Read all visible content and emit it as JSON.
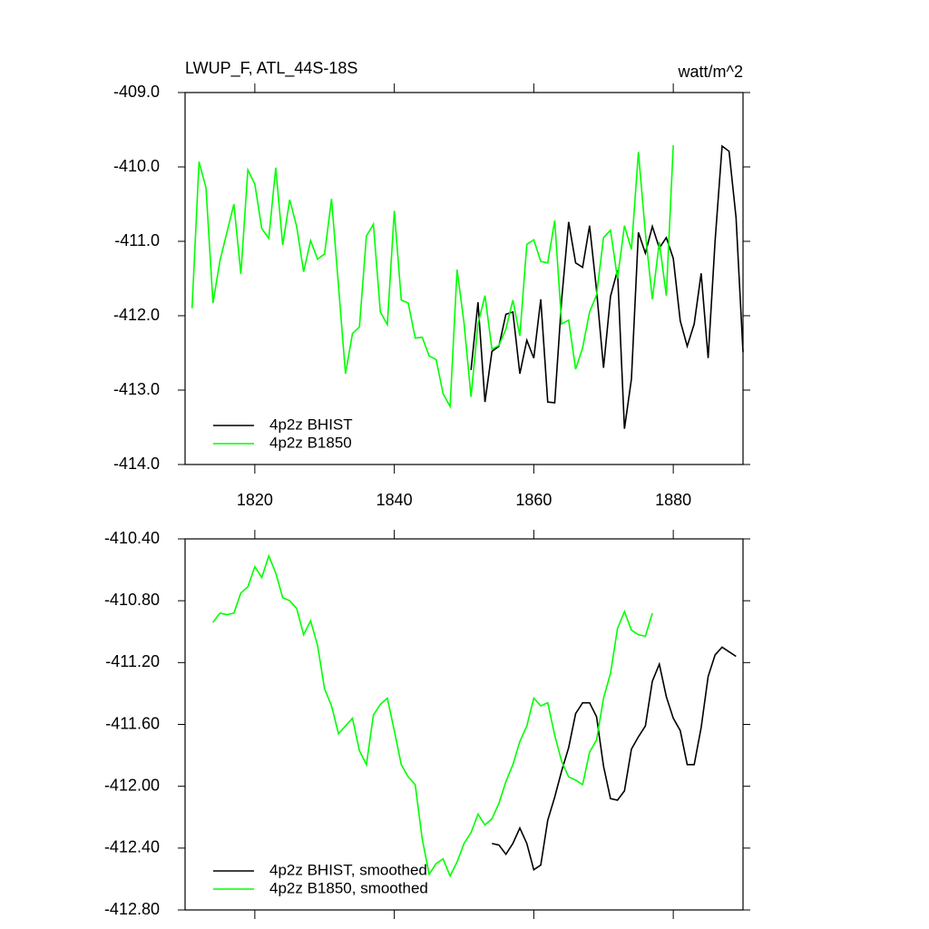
{
  "chart_data": [
    {
      "type": "line",
      "title": "LWUP_F, ATL_44S-18S",
      "subtitle": "watt/m^2",
      "x": [
        1811,
        1812,
        1813,
        1814,
        1815,
        1816,
        1817,
        1818,
        1819,
        1820,
        1821,
        1822,
        1823,
        1824,
        1825,
        1826,
        1827,
        1828,
        1829,
        1830,
        1831,
        1832,
        1833,
        1834,
        1835,
        1836,
        1837,
        1838,
        1839,
        1840,
        1841,
        1842,
        1843,
        1844,
        1845,
        1846,
        1847,
        1848,
        1849,
        1850,
        1851,
        1852,
        1853,
        1854,
        1855,
        1856,
        1857,
        1858,
        1859,
        1860,
        1861,
        1862,
        1863,
        1864,
        1865,
        1866,
        1867,
        1868,
        1869,
        1870,
        1871,
        1872,
        1873,
        1874,
        1875,
        1876,
        1877,
        1878,
        1879,
        1880,
        1881,
        1882,
        1883,
        1884,
        1885,
        1886,
        1887,
        1888,
        1889,
        1890
      ],
      "series": [
        {
          "name": "4p2z BHIST",
          "color": "#000000",
          "values": [
            null,
            null,
            null,
            null,
            null,
            null,
            null,
            null,
            null,
            null,
            null,
            null,
            null,
            null,
            null,
            null,
            null,
            null,
            null,
            null,
            null,
            null,
            null,
            null,
            null,
            null,
            null,
            null,
            null,
            null,
            null,
            null,
            null,
            null,
            null,
            null,
            null,
            null,
            null,
            null,
            -412.73,
            -411.82,
            -413.16,
            -412.48,
            -412.41,
            -411.98,
            -411.95,
            -412.78,
            -412.33,
            -412.57,
            -411.78,
            -413.16,
            -413.17,
            -411.78,
            -410.74,
            -411.29,
            -411.35,
            -410.79,
            -411.66,
            -412.7,
            -411.74,
            -411.39,
            -413.52,
            -412.85,
            -410.88,
            -411.16,
            -410.8,
            -411.09,
            -410.95,
            -411.23,
            -412.07,
            -412.41,
            -412.11,
            -411.43,
            -412.57,
            -410.99,
            -409.72,
            -409.79,
            -410.68,
            -412.49
          ]
        },
        {
          "name": "4p2z B1850",
          "color": "#00ff00",
          "values": [
            -411.9,
            -409.93,
            -410.28,
            -411.83,
            -411.26,
            -410.88,
            -410.5,
            -411.44,
            -410.04,
            -410.23,
            -410.83,
            -410.96,
            -410.01,
            -411.05,
            -410.44,
            -410.8,
            -411.41,
            -410.99,
            -411.24,
            -411.17,
            -410.43,
            -411.6,
            -412.78,
            -412.24,
            -412.15,
            -410.93,
            -410.77,
            -411.95,
            -412.12,
            -410.59,
            -411.79,
            -411.83,
            -412.3,
            -412.29,
            -412.54,
            -412.59,
            -413.05,
            -413.22,
            -411.38,
            -412.1,
            -413.09,
            -412.11,
            -411.73,
            -412.45,
            -412.4,
            -412.18,
            -411.79,
            -412.27,
            -411.04,
            -410.98,
            -411.27,
            -411.29,
            -410.72,
            -412.11,
            -412.06,
            -412.72,
            -412.43,
            -411.95,
            -411.72,
            -410.95,
            -410.85,
            -411.5,
            -410.79,
            -411.11,
            -409.8,
            -410.89,
            -411.78,
            -411.01,
            -411.73,
            -409.71,
            null,
            null,
            null,
            null,
            null,
            null,
            null,
            null,
            null,
            null
          ]
        }
      ],
      "xlim": [
        1810,
        1890
      ],
      "xticks": [
        1820,
        1840,
        1860,
        1880
      ],
      "xtick_labels": true,
      "ylim": [
        -414,
        -409
      ],
      "yticks": [
        {
          "value": -414,
          "label": "-414.0"
        },
        {
          "value": -413,
          "label": "-413.0"
        },
        {
          "value": -412,
          "label": "-412.0"
        },
        {
          "value": -411,
          "label": "-411.0"
        },
        {
          "value": -410,
          "label": "-410.0"
        },
        {
          "value": -409,
          "label": "-409.0"
        }
      ],
      "grid": false,
      "legend": "lower left"
    },
    {
      "type": "line",
      "x": [
        1814,
        1815,
        1816,
        1817,
        1818,
        1819,
        1820,
        1821,
        1822,
        1823,
        1824,
        1825,
        1826,
        1827,
        1828,
        1829,
        1830,
        1831,
        1832,
        1833,
        1834,
        1835,
        1836,
        1837,
        1838,
        1839,
        1840,
        1841,
        1842,
        1843,
        1844,
        1845,
        1846,
        1847,
        1848,
        1849,
        1850,
        1851,
        1852,
        1853,
        1854,
        1855,
        1856,
        1857,
        1858,
        1859,
        1860,
        1861,
        1862,
        1863,
        1864,
        1865,
        1866,
        1867,
        1868,
        1869,
        1870,
        1871,
        1872,
        1873,
        1874,
        1875,
        1876,
        1877,
        1878,
        1879,
        1880,
        1881,
        1882,
        1883,
        1884,
        1885,
        1886,
        1887,
        1888,
        1889
      ],
      "series": [
        {
          "name": "4p2z BHIST, smoothed",
          "color": "#000000",
          "values": [
            null,
            null,
            null,
            null,
            null,
            null,
            null,
            null,
            null,
            null,
            null,
            null,
            null,
            null,
            null,
            null,
            null,
            null,
            null,
            null,
            null,
            null,
            null,
            null,
            null,
            null,
            null,
            null,
            null,
            null,
            null,
            null,
            null,
            null,
            null,
            null,
            null,
            null,
            null,
            null,
            -412.37,
            -412.38,
            -412.44,
            -412.37,
            -412.27,
            -412.37,
            -412.54,
            -412.51,
            -412.22,
            -412.07,
            -411.9,
            -411.75,
            -411.53,
            -411.46,
            -411.46,
            -411.55,
            -411.87,
            -412.08,
            -412.09,
            -412.03,
            -411.76,
            -411.68,
            -411.61,
            -411.32,
            -411.21,
            -411.42,
            -411.56,
            -411.64,
            -411.86,
            -411.86,
            -411.62,
            -411.29,
            -411.15,
            -411.1,
            -411.13,
            -411.16
          ]
        },
        {
          "name": "4p2z B1850, smoothed",
          "color": "#00ff00",
          "values": [
            -410.94,
            -410.88,
            -410.89,
            -410.88,
            -410.75,
            -410.71,
            -410.58,
            -410.65,
            -410.51,
            -410.62,
            -410.78,
            -410.8,
            -410.85,
            -411.02,
            -410.93,
            -411.09,
            -411.37,
            -411.48,
            -411.66,
            -411.61,
            -411.56,
            -411.77,
            -411.86,
            -411.54,
            -411.47,
            -411.43,
            -411.64,
            -411.86,
            -411.94,
            -411.99,
            -412.34,
            -412.57,
            -412.5,
            -412.47,
            -412.58,
            -412.49,
            -412.37,
            -412.3,
            -412.18,
            -412.25,
            -412.21,
            -412.11,
            -411.97,
            -411.86,
            -411.71,
            -411.61,
            -411.43,
            -411.48,
            -411.46,
            -411.67,
            -411.84,
            -411.94,
            -411.96,
            -411.99,
            -411.78,
            -411.7,
            -411.43,
            -411.27,
            -410.98,
            -410.87,
            -410.99,
            -411.02,
            -411.03,
            -410.88,
            null,
            null,
            null,
            null,
            null,
            null,
            null,
            null,
            null,
            null,
            null,
            null
          ]
        }
      ],
      "xlim": [
        1810,
        1890
      ],
      "xticks": [
        1820,
        1840,
        1860,
        1880
      ],
      "xtick_labels": false,
      "ylim": [
        -412.8,
        -410.4
      ],
      "yticks": [
        {
          "value": -412.8,
          "label": "-412.80"
        },
        {
          "value": -412.4,
          "label": "-412.40"
        },
        {
          "value": -412.0,
          "label": "-412.00"
        },
        {
          "value": -411.6,
          "label": "-411.60"
        },
        {
          "value": -411.2,
          "label": "-411.20"
        },
        {
          "value": -410.8,
          "label": "-410.80"
        },
        {
          "value": -410.4,
          "label": "-410.40"
        }
      ],
      "grid": false,
      "legend": "lower left"
    }
  ]
}
